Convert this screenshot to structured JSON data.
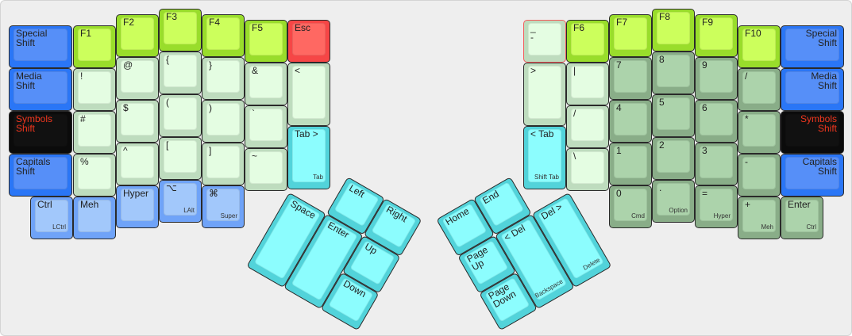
{
  "keys": [
    {
      "label": "Special\nShift",
      "color": "blue"
    },
    {
      "label": "Media\nShift",
      "color": "blue"
    },
    {
      "label": "Symbols\nShift",
      "color": "black"
    },
    {
      "label": "Capitals\nShift",
      "color": "blue"
    },
    {
      "label": "Ctrl",
      "sub": "LCtrl",
      "color": "lblue"
    },
    {
      "label": "F1",
      "color": "lime"
    },
    {
      "label": "!",
      "color": "lg"
    },
    {
      "label": "#",
      "color": "lg"
    },
    {
      "label": "%",
      "color": "lg"
    },
    {
      "label": "Meh",
      "color": "lblue"
    },
    {
      "label": "F2",
      "color": "lime"
    },
    {
      "label": "@",
      "color": "lg"
    },
    {
      "label": "$",
      "color": "lg"
    },
    {
      "label": "^",
      "color": "lg"
    },
    {
      "label": "Hyper",
      "color": "lblue"
    },
    {
      "label": "F3",
      "color": "lime"
    },
    {
      "label": "{",
      "color": "lg"
    },
    {
      "label": "(",
      "color": "lg"
    },
    {
      "label": "[",
      "color": "lg"
    },
    {
      "label": "⌥",
      "sub": "LAlt",
      "color": "lblue"
    },
    {
      "label": "F4",
      "color": "lime"
    },
    {
      "label": "}",
      "color": "lg"
    },
    {
      "label": ")",
      "color": "lg"
    },
    {
      "label": "]",
      "color": "lg"
    },
    {
      "label": "⌘",
      "sub": "Super",
      "color": "lblue"
    },
    {
      "label": "F5",
      "color": "lime"
    },
    {
      "label": "&",
      "color": "lg"
    },
    {
      "label": "`",
      "color": "lg"
    },
    {
      "label": "~",
      "color": "lg"
    },
    {
      "label": "Esc",
      "color": "red"
    },
    {
      "label": "<",
      "color": "lg"
    },
    {
      "label": "Tab >",
      "sub": "Tab",
      "color": "cyan"
    },
    {
      "label": "_\n-",
      "color": "lg"
    },
    {
      "label": ">",
      "color": "lg"
    },
    {
      "label": "< Tab",
      "sub": "Shift Tab",
      "color": "cyan"
    },
    {
      "label": "F6",
      "color": "lime"
    },
    {
      "label": "|",
      "color": "lg"
    },
    {
      "label": "/",
      "color": "lg"
    },
    {
      "label": "\\",
      "color": "lg"
    },
    {
      "label": "F7",
      "color": "lime"
    },
    {
      "label": "7",
      "color": "dg"
    },
    {
      "label": "4",
      "color": "dg"
    },
    {
      "label": "1",
      "color": "dg"
    },
    {
      "label": "0",
      "sub": "Cmd",
      "color": "dg"
    },
    {
      "label": "F8",
      "color": "lime"
    },
    {
      "label": "8",
      "color": "dg"
    },
    {
      "label": "5",
      "color": "dg"
    },
    {
      "label": "2",
      "color": "dg"
    },
    {
      "label": ".",
      "sub": "Option",
      "color": "dg"
    },
    {
      "label": "F9",
      "color": "lime"
    },
    {
      "label": "9",
      "color": "dg"
    },
    {
      "label": "6",
      "color": "dg"
    },
    {
      "label": "3",
      "color": "dg"
    },
    {
      "label": "=",
      "sub": "Hyper",
      "color": "dg"
    },
    {
      "label": "F10",
      "color": "lime"
    },
    {
      "label": "/",
      "color": "dg"
    },
    {
      "label": "*",
      "color": "dg"
    },
    {
      "label": "-",
      "color": "dg"
    },
    {
      "label": "+",
      "sub": "Meh",
      "color": "dg"
    },
    {
      "label": "Special\nShift",
      "color": "blue"
    },
    {
      "label": "Media\nShift",
      "color": "blue"
    },
    {
      "label": "Symbols\nShift",
      "color": "black"
    },
    {
      "label": "Capitals\nShift",
      "color": "blue"
    },
    {
      "label": "Enter",
      "sub": "Ctrl",
      "color": "dg"
    },
    {
      "label": "Left",
      "color": "cyan"
    },
    {
      "label": "Right",
      "color": "cyan"
    },
    {
      "label": "Space",
      "color": "cyan"
    },
    {
      "label": "Enter",
      "color": "cyan"
    },
    {
      "label": "Up",
      "color": "cyan"
    },
    {
      "label": "Down",
      "color": "cyan"
    },
    {
      "label": "Home",
      "color": "cyan"
    },
    {
      "label": "End",
      "color": "cyan"
    },
    {
      "label": "Page\nUp",
      "color": "cyan"
    },
    {
      "label": "Page\nDown",
      "color": "cyan"
    },
    {
      "label": "< Del",
      "sub": "Backspace",
      "color": "cyan"
    },
    {
      "label": "Del >",
      "sub": "Delete",
      "color": "cyan"
    }
  ],
  "colors": {
    "blue": "#2a76f6",
    "black": "#0b0b0b",
    "light_blue": "#a2c8fb",
    "lime": "#ccff5c",
    "light_green": "#e4fde2",
    "dark_green": "#acd3ab",
    "cyan": "#8cfdfe",
    "red": "#ff6862",
    "shift_text_red": "#f0361e"
  }
}
